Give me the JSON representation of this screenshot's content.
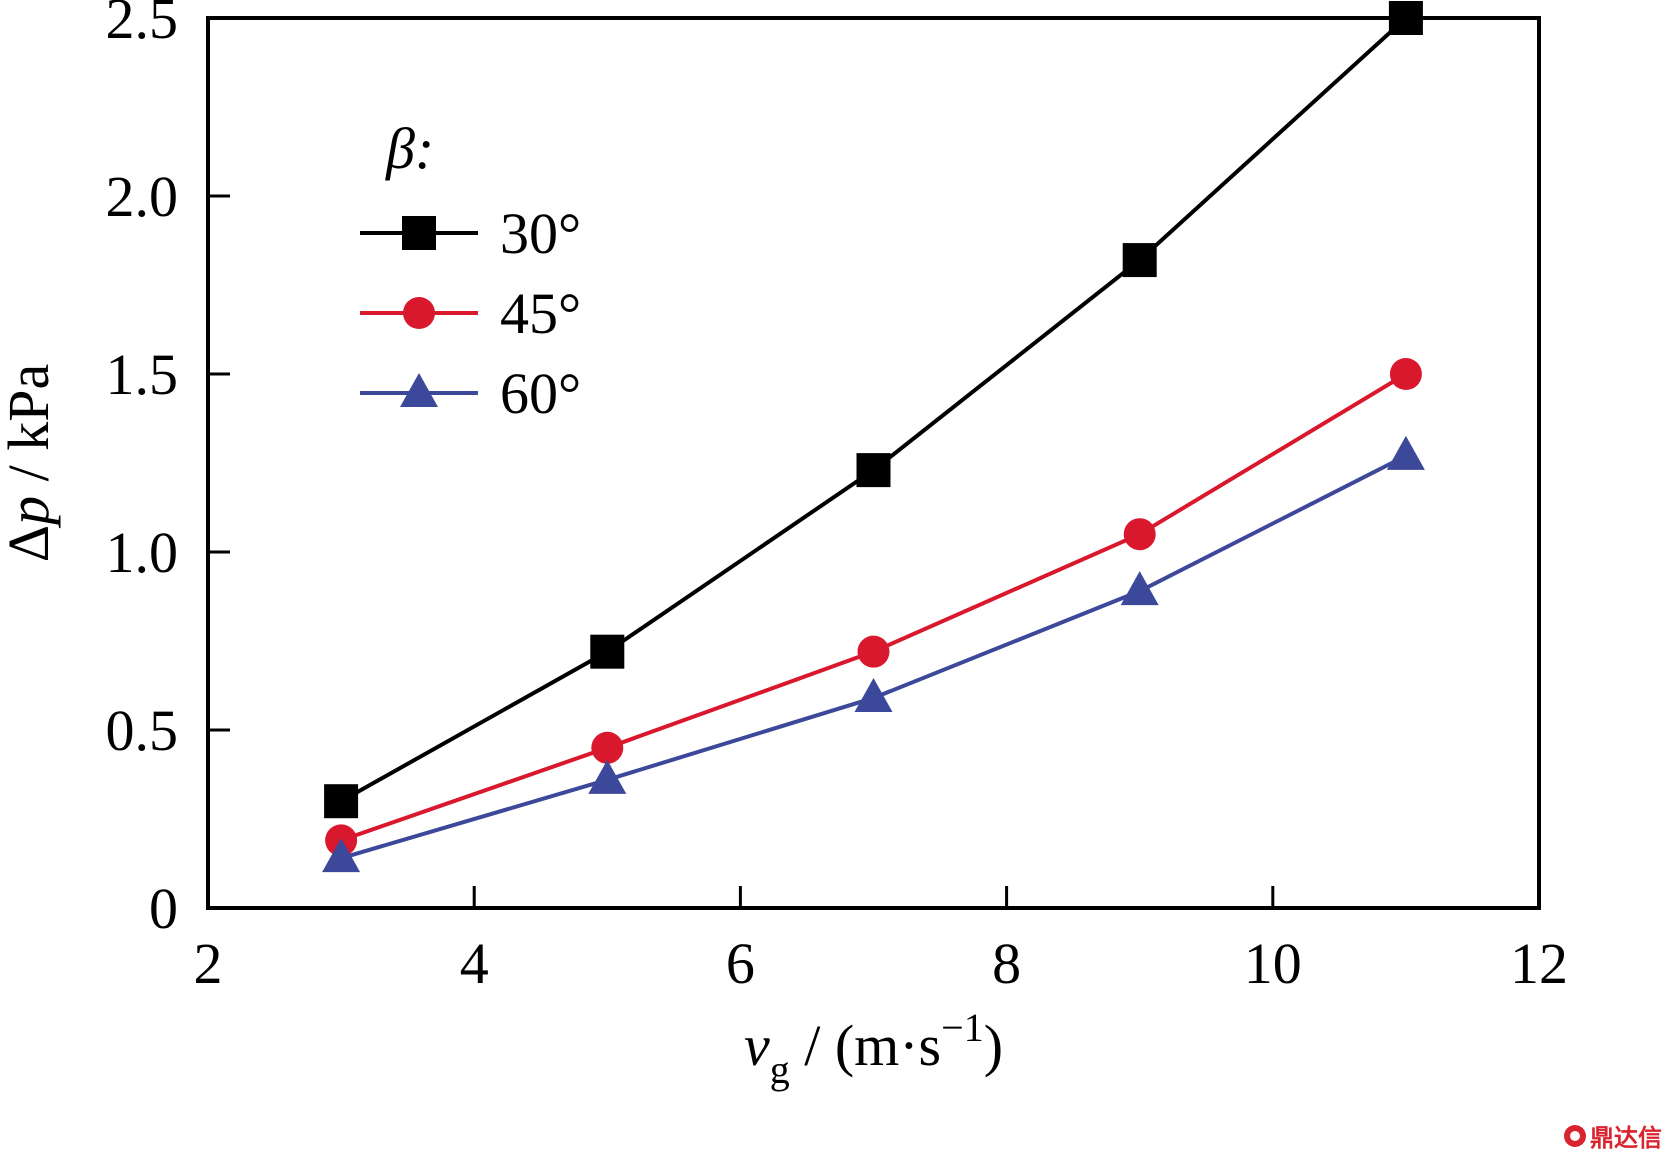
{
  "chart_data": {
    "type": "line",
    "xlabel": {
      "var": "v",
      "sub": "g",
      "unit": " / (m·s",
      "exp": "−1",
      "close": ")"
    },
    "ylabel": {
      "delta": "Δ",
      "var": "p",
      "unit": " / kPa"
    },
    "xlim": [
      2,
      12
    ],
    "ylim": [
      0,
      2.5
    ],
    "xticks": [
      2,
      4,
      6,
      8,
      10,
      12
    ],
    "xtick_labels": [
      "2",
      "4",
      "6",
      "8",
      "10",
      "12"
    ],
    "yticks": [
      0,
      0.5,
      1.0,
      1.5,
      2.0,
      2.5
    ],
    "ytick_labels": [
      "0",
      "0.5",
      "1.0",
      "1.5",
      "2.0",
      "2.5"
    ],
    "legend_title": "β:",
    "legend_position": "upper-left",
    "x": [
      3,
      5,
      7,
      9,
      11
    ],
    "series": [
      {
        "name": "30°",
        "values": [
          0.3,
          0.72,
          1.23,
          1.82,
          2.5
        ],
        "color": "#000000",
        "marker": "square"
      },
      {
        "name": "45°",
        "values": [
          0.19,
          0.45,
          0.72,
          1.05,
          1.5
        ],
        "color": "#d9182d",
        "marker": "circle"
      },
      {
        "name": "60°",
        "values": [
          0.14,
          0.36,
          0.59,
          0.89,
          1.27
        ],
        "color": "#3c4899",
        "marker": "triangle"
      }
    ]
  },
  "watermark": {
    "text": "鼎达信"
  }
}
